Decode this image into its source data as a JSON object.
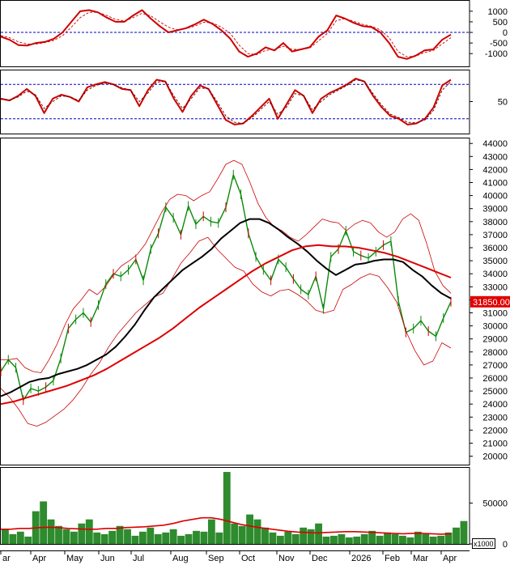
{
  "chart_data": [
    {
      "panel": "macd",
      "type": "line",
      "yticks": [
        1000,
        500,
        0,
        -500,
        -1000
      ],
      "ylim": [
        -1450,
        1300
      ],
      "ref_lines": [
        0
      ],
      "series": [
        {
          "role": "macd",
          "color": "#cc0000",
          "values": [
            -200,
            -350,
            -600,
            -620,
            -500,
            -450,
            -300,
            0,
            500,
            1000,
            1050,
            950,
            700,
            500,
            500,
            800,
            1050,
            650,
            300,
            0,
            100,
            200,
            380,
            600,
            400,
            100,
            -300,
            -900,
            -1150,
            -1000,
            -700,
            -850,
            -500,
            -900,
            -800,
            -700,
            -200,
            100,
            800,
            650,
            450,
            300,
            250,
            0,
            -500,
            -1150,
            -1250,
            -1100,
            -850,
            -800,
            -350,
            -100
          ]
        },
        {
          "role": "signal",
          "color": "#cc0000",
          "dashed": true,
          "values": [
            -150,
            -250,
            -450,
            -550,
            -550,
            -480,
            -380,
            -150,
            250,
            700,
            950,
            950,
            800,
            620,
            540,
            700,
            900,
            780,
            500,
            250,
            120,
            180,
            300,
            480,
            450,
            250,
            -50,
            -600,
            -1000,
            -1050,
            -850,
            -800,
            -650,
            -800,
            -800,
            -740,
            -400,
            -50,
            550,
            650,
            520,
            380,
            290,
            120,
            -250,
            -900,
            -1150,
            -1120,
            -950,
            -850,
            -550,
            -250
          ]
        }
      ]
    },
    {
      "panel": "rsi",
      "type": "line",
      "yticks": [
        50
      ],
      "ylim": [
        0,
        100
      ],
      "ref_lines": [
        80,
        20
      ],
      "series": [
        {
          "role": "rsi",
          "color": "#cc0000",
          "values": [
            55,
            52,
            60,
            72,
            60,
            30,
            55,
            62,
            58,
            50,
            75,
            80,
            84,
            80,
            72,
            70,
            42,
            70,
            88,
            85,
            55,
            32,
            60,
            78,
            72,
            45,
            18,
            10,
            12,
            25,
            40,
            55,
            20,
            45,
            70,
            60,
            30,
            55,
            65,
            72,
            80,
            90,
            85,
            60,
            40,
            25,
            20,
            10,
            12,
            20,
            40,
            78,
            88
          ]
        },
        {
          "role": "rsi-signal",
          "color": "#660000",
          "dashed": true,
          "values": [
            54,
            53,
            58,
            68,
            62,
            38,
            50,
            60,
            58,
            52,
            70,
            78,
            82,
            80,
            74,
            70,
            50,
            65,
            84,
            85,
            60,
            38,
            55,
            74,
            72,
            50,
            25,
            14,
            12,
            22,
            36,
            50,
            28,
            40,
            64,
            60,
            36,
            50,
            62,
            70,
            78,
            88,
            85,
            64,
            44,
            28,
            22,
            14,
            13,
            18,
            35,
            70,
            85
          ]
        }
      ]
    },
    {
      "panel": "price",
      "type": "line",
      "yticks": [
        44000,
        43000,
        42000,
        41000,
        40000,
        39000,
        38000,
        37000,
        36000,
        35000,
        34000,
        33000,
        32000,
        31000,
        30000,
        29000,
        28000,
        27000,
        26000,
        25000,
        24000,
        23000,
        22000,
        21000,
        20000
      ],
      "ylim": [
        19600,
        44200
      ],
      "last_price_label": "31850.00",
      "series": [
        {
          "role": "close",
          "color": "#0a8a0a",
          "values": [
            26500,
            27400,
            26800,
            24300,
            25200,
            25000,
            25300,
            25800,
            27500,
            29800,
            30500,
            31000,
            30300,
            31600,
            33200,
            34000,
            33800,
            34300,
            35100,
            33500,
            35900,
            37100,
            39100,
            38300,
            37000,
            39200,
            37800,
            38400,
            38000,
            37900,
            39100,
            41600,
            40100,
            37100,
            35300,
            34300,
            33500,
            35100,
            34500,
            33600,
            32800,
            32400,
            33800,
            31300,
            35300,
            35900,
            37300,
            35700,
            35400,
            35200,
            35700,
            36200,
            36500,
            31900,
            29500,
            29800,
            30400,
            29600,
            29200,
            30600,
            31850
          ]
        },
        {
          "role": "bollinger-upper",
          "color": "#cc0000",
          "thin": true,
          "values": [
            27400,
            27400,
            27500,
            26800,
            26500,
            26400,
            27400,
            28600,
            30100,
            31300,
            32000,
            32800,
            32400,
            33000,
            33900,
            34600,
            35000,
            35500,
            36300,
            37500,
            38700,
            39700,
            40100,
            40000,
            39600,
            40000,
            40300,
            41300,
            42400,
            42700,
            42400,
            41000,
            39400,
            38300,
            37600,
            37300,
            36800,
            36500,
            37000,
            37600,
            38200,
            38000,
            37900,
            37300,
            37800,
            38100,
            37900,
            37200,
            36800,
            37200,
            38200,
            38600,
            38100,
            36300,
            34200,
            33100,
            32500
          ]
        },
        {
          "role": "bollinger-lower",
          "color": "#cc0000",
          "thin": true,
          "values": [
            25200,
            24500,
            23600,
            22500,
            22300,
            22600,
            23100,
            23600,
            24300,
            25200,
            26300,
            27200,
            28400,
            29400,
            30200,
            31000,
            31600,
            32200,
            32500,
            33600,
            34800,
            35600,
            36500,
            36800,
            35900,
            35200,
            34500,
            34200,
            33200,
            32600,
            32300,
            32700,
            32800,
            32400,
            31900,
            31200,
            31000,
            31200,
            32800,
            33200,
            33700,
            34000,
            33800,
            32900,
            31800,
            29600,
            28100,
            27000,
            27300,
            28700,
            28300
          ]
        },
        {
          "role": "ma-short",
          "color": "#000000",
          "values": [
            24600,
            24900,
            25300,
            25700,
            25900,
            26000,
            26300,
            26500,
            26700,
            27000,
            27400,
            27800,
            28400,
            29200,
            30100,
            31200,
            32200,
            32900,
            33600,
            34300,
            34800,
            35300,
            35900,
            36700,
            37300,
            37900,
            38200,
            38200,
            37900,
            37400,
            36800,
            36300,
            35700,
            35000,
            34400,
            33900,
            34300,
            34700,
            34800,
            35000,
            35100,
            35100,
            34900,
            34300,
            33800,
            33100,
            32500,
            32100
          ]
        },
        {
          "role": "ma-long",
          "color": "#dd0000",
          "values": [
            24000,
            24200,
            24500,
            24800,
            25100,
            25400,
            25800,
            26200,
            26700,
            27300,
            27900,
            28500,
            29100,
            29800,
            30600,
            31400,
            32100,
            32800,
            33500,
            34200,
            34800,
            35300,
            35800,
            36100,
            36200,
            36100,
            36100,
            36000,
            35800,
            35600,
            35300,
            34900,
            34500,
            34100,
            33700
          ]
        }
      ]
    },
    {
      "panel": "volume",
      "type": "bar",
      "unit_label": "x1000",
      "yticks": [
        50000,
        0
      ],
      "ylim": [
        0,
        92000
      ],
      "series": [
        {
          "role": "volume",
          "color": "#2e8b2e",
          "values": [
            18000,
            12000,
            15000,
            9000,
            40000,
            52000,
            30000,
            22000,
            18000,
            15000,
            25000,
            30000,
            14000,
            12000,
            16000,
            22000,
            18000,
            10000,
            15000,
            20000,
            12000,
            14000,
            18000,
            10000,
            12000,
            16000,
            15000,
            30000,
            14000,
            88000,
            25000,
            22000,
            36000,
            30000,
            20000,
            14000,
            10000,
            15000,
            12000,
            20000,
            18000,
            25000,
            9000,
            10000,
            12000,
            8000,
            9000,
            12000,
            16000,
            10000,
            14000,
            12000,
            10000,
            8000,
            15000,
            12000,
            9000,
            10000,
            14000,
            20000,
            28000
          ]
        },
        {
          "role": "volume-ma",
          "color": "#dd0000",
          "values": [
            18000,
            18000,
            19000,
            19000,
            20000,
            20500,
            20000,
            19000,
            18500,
            18000,
            18000,
            19000,
            19000,
            20000,
            20500,
            21000,
            22000,
            23000,
            25000,
            28000,
            30000,
            32000,
            32000,
            30000,
            27000,
            24000,
            22000,
            20000,
            18500,
            17000,
            15500,
            14500,
            14000,
            13500,
            14000,
            14500,
            15000,
            15000,
            14500,
            14000,
            13500,
            13000,
            12500,
            13000,
            13000,
            12500,
            12000,
            12500
          ]
        }
      ]
    },
    {
      "panel": "x-axis",
      "xticks": [
        "ar",
        "Apr",
        "May",
        "Jun",
        "Jul",
        "Aug",
        "Sep",
        "Oct",
        "Nov",
        "Dec",
        "2026",
        "Feb",
        "Mar",
        "Apr"
      ]
    }
  ]
}
